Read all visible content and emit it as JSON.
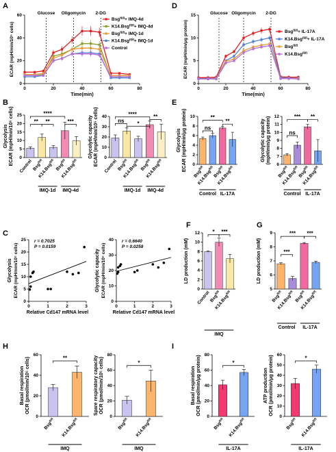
{
  "colors": {
    "red": "#e41a1c",
    "olive": "#8aa028",
    "orange": "#e89b3a",
    "blue": "#4f7fd6",
    "purple": "#b46fd6",
    "lav": "#c9c4ef",
    "yel": "#fbe7a4",
    "pink": "#f28ab4",
    "cream": "#fbf0c4",
    "bar_orange": "#fdb46b",
    "bar_blue": "#74a4f2",
    "bar_pink": "#f06aa0",
    "bar_red": "#f2386e",
    "bar_purple": "#a98bdc"
  },
  "panel_labels": {
    "A": "A",
    "B": "B",
    "C": "C",
    "D": "D",
    "E": "E",
    "F": "F",
    "G": "G",
    "H": "H",
    "I": "I"
  },
  "chart_data": [
    {
      "id": "A",
      "type": "line",
      "xlabel": "Time(min)",
      "ylabel": "ECAR (mpH/min/10⁵ cells)",
      "xlim": [
        0,
        80
      ],
      "ylim": [
        0,
        60
      ],
      "xticks": [
        0,
        20,
        40,
        60,
        80
      ],
      "yticks": [
        0,
        20,
        40,
        60
      ],
      "annotations": [
        "Glucose",
        "Oligomycin",
        "2-DG"
      ],
      "vlines": [
        15,
        34,
        53
      ],
      "legend_position": "top-right",
      "x": [
        0,
        7,
        13,
        20,
        26,
        33,
        40,
        46,
        52,
        60,
        66,
        73
      ],
      "series": [
        {
          "name": "Bsgfl/fl+ IMQ-4d",
          "color": "#e41a1c",
          "values": [
            10,
            10,
            11,
            27,
            30,
            38,
            46,
            46,
            45,
            9,
            9,
            8
          ]
        },
        {
          "name": "K14.Bsgfl/fl+ IMQ-4d",
          "color": "#8aa028",
          "values": [
            7,
            7,
            8,
            24,
            26,
            30,
            35,
            35,
            34,
            6,
            6,
            6
          ]
        },
        {
          "name": "Bsgfl/fl+ IMQ-1d",
          "color": "#e89b3a",
          "values": [
            8,
            8,
            9,
            22,
            25,
            30,
            31,
            31,
            30,
            7,
            7,
            7
          ]
        },
        {
          "name": "K14.Bsgfl/fl+ IMQ-1d",
          "color": "#4f7fd6",
          "values": [
            6,
            6,
            7,
            20,
            22,
            26,
            27,
            27,
            26,
            5,
            5,
            5
          ]
        },
        {
          "name": "Control",
          "color": "#b46fd6",
          "values": [
            7,
            7,
            7,
            20,
            22,
            26,
            26,
            26,
            25,
            6,
            6,
            6
          ]
        }
      ]
    },
    {
      "id": "D",
      "type": "line",
      "xlabel": "Time(min)",
      "ylabel": "ECAR (mpH/min/μg protein)",
      "xlim": [
        0,
        80
      ],
      "ylim": [
        0,
        15
      ],
      "xticks": [
        0,
        20,
        40,
        60,
        80
      ],
      "yticks": [
        0,
        5,
        10,
        15
      ],
      "annotations": [
        "Glucose",
        "Oligomycin",
        "2-DG"
      ],
      "vlines": [
        15,
        33,
        53
      ],
      "legend_position": "right",
      "x": [
        0,
        7,
        13,
        20,
        26,
        33,
        40,
        46,
        52,
        60,
        66,
        73
      ],
      "series": [
        {
          "name": "Bsgfl/fl+ IL-17A",
          "color": "#e41a1c",
          "values": [
            1.3,
            1.3,
            1.4,
            6.0,
            7.0,
            10.0,
            11.0,
            11.6,
            11.9,
            1.5,
            1.4,
            1.4
          ]
        },
        {
          "name": "K14.Bsgfl/fl+ IL-17A",
          "color": "#4f7fd6",
          "values": [
            1.1,
            1.1,
            1.2,
            5.0,
            6.0,
            8.5,
            9.2,
            9.6,
            10.0,
            1.3,
            1.2,
            1.2
          ]
        },
        {
          "name": "Bsgfl/fl",
          "color": "#e89b3a",
          "values": [
            1.0,
            1.0,
            1.1,
            4.8,
            5.4,
            7.2,
            8.0,
            8.4,
            8.7,
            1.1,
            1.1,
            1.1
          ]
        },
        {
          "name": "K14.Bsgfl/fl",
          "color": "#b46fd6",
          "values": [
            1.0,
            1.0,
            1.0,
            4.5,
            5.0,
            6.8,
            7.6,
            8.0,
            8.3,
            1.1,
            1.1,
            1.0
          ]
        }
      ]
    },
    {
      "id": "B1",
      "type": "bar",
      "ylabel": "Glycolysis ECAR (mpH/min/10⁵ cells)",
      "ylim": [
        0,
        25
      ],
      "yticks": [
        0,
        5,
        10,
        15,
        20,
        25
      ],
      "categories": [
        "Control",
        "Bsgfl/fl",
        "K14.Bsgfl/fl",
        "Bsgfl/fl",
        "K14.Bsgfl/fl"
      ],
      "values": [
        5.5,
        11.8,
        6.0,
        15.8,
        9.8
      ],
      "errors": [
        0.8,
        2.0,
        1.0,
        5.0,
        2.5
      ],
      "groups": [
        "IMQ-1d",
        "IMQ-4d"
      ],
      "significance": [
        "****",
        "**",
        "**",
        "***"
      ]
    },
    {
      "id": "B2",
      "type": "bar",
      "ylabel": "Glycolytic capacity ECAR (mpH/min/10⁵ cells)",
      "ylim": [
        0,
        40
      ],
      "yticks": [
        0,
        10,
        20,
        30,
        40
      ],
      "categories": [
        "Control",
        "Bsgfl/fl",
        "K14.Bsgfl/fl",
        "Bsgfl/fl",
        "K14.Bsgfl/fl"
      ],
      "values": [
        19.0,
        25.8,
        18.2,
        32.0,
        25.0
      ],
      "errors": [
        3.0,
        3.0,
        2.5,
        3.5,
        7.5
      ],
      "groups": [
        "IMQ-1d",
        "IMQ-4d"
      ],
      "significance": [
        "****",
        "**",
        "ns",
        "*"
      ]
    },
    {
      "id": "E1",
      "type": "bar",
      "ylabel": "Glycolysis ECAR (mpH/min/μg protein)",
      "ylim": [
        0,
        10
      ],
      "yticks": [
        0,
        2,
        4,
        6,
        8,
        10
      ],
      "categories": [
        "Bsgfl/fl",
        "K14.Bsgfl/fl",
        "Bsgfl/fl",
        "K14.Bsgfl/fl"
      ],
      "values": [
        5.4,
        6.0,
        7.6,
        5.2
      ],
      "errors": [
        0.3,
        0.5,
        0.3,
        1.5
      ],
      "groups": [
        "Control",
        "IL-17A"
      ],
      "significance": [
        "**",
        "ns",
        "**"
      ]
    },
    {
      "id": "E2",
      "type": "bar",
      "ylabel": "Glycolytic capacity ECAR (mpH/min/μg protein)",
      "ylim": [
        6,
        12
      ],
      "yticks": [
        6,
        7,
        8,
        9,
        10,
        11,
        12
      ],
      "categories": [
        "Bsgfl/fl",
        "K14.Bsgfl/fl",
        "Bsgfl/fl",
        "K14.Bsgfl/fl"
      ],
      "values": [
        7.2,
        8.4,
        10.7,
        7.7
      ],
      "errors": [
        0.15,
        0.4,
        0.3,
        1.4
      ],
      "groups": [
        "Control",
        "IL-17A"
      ],
      "significance": [
        "***",
        "**",
        "ns"
      ]
    },
    {
      "id": "C1",
      "type": "scatter",
      "xlabel": "Relative Cd147 mRNA level",
      "ylabel": "Glycolysis ECAR (mpH/min/10⁵ cells)",
      "xlim": [
        0,
        3
      ],
      "ylim": [
        0,
        25
      ],
      "xticks": [
        0,
        1,
        2,
        3
      ],
      "yticks": [
        0,
        5,
        10,
        15,
        20,
        25
      ],
      "annotations": [
        "r = 0.7025",
        "P = 0.0159"
      ],
      "x": [
        0.05,
        0.1,
        0.1,
        0.2,
        0.25,
        1.0,
        1.15,
        2.0,
        2.3,
        2.6,
        2.9
      ],
      "y": [
        4.8,
        6,
        10,
        11.5,
        12,
        5,
        5,
        12,
        11,
        11.5,
        22
      ],
      "fit": [
        [
          0,
          7.2
        ],
        [
          3,
          16.2
        ]
      ]
    },
    {
      "id": "C2",
      "type": "scatter",
      "xlabel": "Relative Cd147 mRNA level",
      "ylabel": "Glycolytic capacity ECAR (mpH/min/10⁵ cells)",
      "xlim": [
        0,
        3
      ],
      "ylim": [
        0,
        40
      ],
      "xticks": [
        0,
        1,
        2,
        3
      ],
      "yticks": [
        0,
        10,
        20,
        30,
        40
      ],
      "annotations": [
        "r = 0.6640",
        "P = 0.0258"
      ],
      "x": [
        0.05,
        0.1,
        0.1,
        0.2,
        0.25,
        1.0,
        1.15,
        2.0,
        2.3,
        2.6,
        2.9
      ],
      "y": [
        18,
        19,
        22,
        23,
        24,
        19,
        20,
        24,
        22,
        25,
        34
      ],
      "fit": [
        [
          0,
          19.5
        ],
        [
          3,
          28.5
        ]
      ]
    },
    {
      "id": "F",
      "type": "bar",
      "ylabel": "LD production (mM)",
      "ylim": [
        0,
        12
      ],
      "yticks": [
        0,
        2,
        4,
        6,
        8,
        10,
        12
      ],
      "categories": [
        "Control",
        "Bsgfl/fl",
        "K14.Bsgfl/fl"
      ],
      "values": [
        8.0,
        10.0,
        6.5
      ],
      "errors": [
        0.15,
        0.9,
        0.9
      ],
      "groups": [
        "IMQ"
      ],
      "significance": [
        "*",
        "***"
      ]
    },
    {
      "id": "G",
      "type": "bar",
      "ylabel": "LD production (mM)",
      "ylim": [
        5,
        9
      ],
      "yticks": [
        5,
        6,
        7,
        8,
        9
      ],
      "categories": [
        "Bsgfl/fl",
        "K14.Bsgfl/fl",
        "Bsgfl/fl",
        "K14.Bsgfl/fl"
      ],
      "values": [
        6.8,
        5.75,
        8.25,
        6.9
      ],
      "errors": [
        0.07,
        0.15,
        0.06,
        0.08
      ],
      "groups": [
        "Control",
        "IL-17A"
      ],
      "significance": [
        "***",
        "***",
        "***"
      ]
    },
    {
      "id": "H1",
      "type": "bar",
      "ylabel": "Basal respiration OCR (pmol/min/10⁵ cells)",
      "ylim": [
        0,
        60
      ],
      "yticks": [
        0,
        20,
        40,
        60
      ],
      "categories": [
        "Bsgfl/fl",
        "K14.Bsgfl/fl"
      ],
      "values": [
        28,
        43
      ],
      "errors": [
        3,
        6
      ],
      "groups": [
        "IMQ"
      ],
      "significance": [
        "**"
      ]
    },
    {
      "id": "H2",
      "type": "bar",
      "ylabel": "Spare respiratory capacity OCR (pmol/min/10⁵ cells)",
      "ylim": [
        0,
        80
      ],
      "yticks": [
        0,
        20,
        40,
        60,
        80
      ],
      "categories": [
        "Bsgfl/fl",
        "K14.Bsgfl/fl"
      ],
      "values": [
        21,
        46
      ],
      "errors": [
        5,
        14
      ],
      "groups": [
        "IMQ"
      ],
      "significance": [
        "*"
      ]
    },
    {
      "id": "I1",
      "type": "bar",
      "ylabel": "Basal respiration OCR (pmol/min/μg protein)",
      "ylim": [
        0,
        80
      ],
      "yticks": [
        0,
        20,
        40,
        60,
        80
      ],
      "categories": [
        "Bsgfl/fl",
        "K14.Bsgfl/fl"
      ],
      "values": [
        41,
        57
      ],
      "errors": [
        6,
        4
      ],
      "groups": [
        "IL-17A"
      ],
      "significance": [
        "*"
      ]
    },
    {
      "id": "I2",
      "type": "bar",
      "ylabel": "ATP production OCR (pmol/min/μg protein)",
      "ylim": [
        0,
        60
      ],
      "yticks": [
        0,
        10,
        20,
        30,
        40,
        50,
        60
      ],
      "categories": [
        "Bsgfl/fl",
        "K14.Bsgfl/fl"
      ],
      "values": [
        32,
        46
      ],
      "errors": [
        5,
        4
      ],
      "groups": [
        "IL-17A"
      ],
      "significance": [
        "*"
      ]
    }
  ]
}
